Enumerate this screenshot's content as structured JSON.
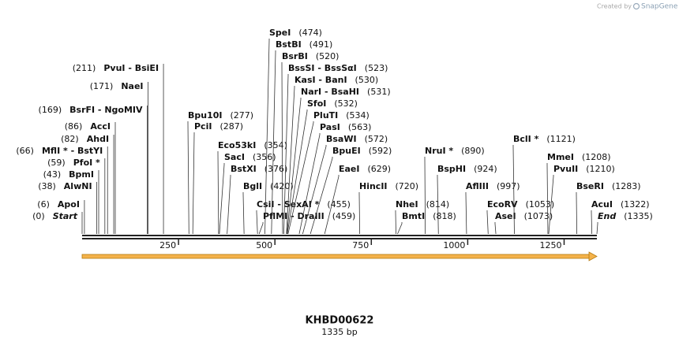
{
  "logo": {
    "prefix": "Created by",
    "brand": "SnapGene"
  },
  "title": "KHBD00622",
  "subtitle": "1335 bp",
  "ruler": {
    "length": 1335,
    "ticks": [
      250,
      500,
      750,
      1000,
      1250
    ]
  },
  "sites": [
    {
      "name": "PvuI - BsiEI",
      "position": {
        "value": 211,
        "label": "(211)"
      }
    },
    {
      "name": "NaeI",
      "position": {
        "value": 171,
        "label": "(171)"
      }
    },
    {
      "name": "BsrFI - NgoMIV",
      "position": {
        "value": 169,
        "label": "(169)"
      }
    },
    {
      "name": "AccI",
      "position": {
        "value": 86,
        "label": "(86)"
      }
    },
    {
      "name": "AhdI",
      "position": {
        "value": 82,
        "label": "(82)"
      }
    },
    {
      "name": "MflI * - BstYI",
      "position": {
        "value": 66,
        "label": "(66)"
      }
    },
    {
      "name": "PfoI *",
      "position": {
        "value": 59,
        "label": "(59)"
      }
    },
    {
      "name": "BpmI",
      "position": {
        "value": 43,
        "label": "(43)"
      }
    },
    {
      "name": "AlwNI",
      "position": {
        "value": 38,
        "label": "(38)"
      }
    },
    {
      "name": "ApoI",
      "position": {
        "value": 6,
        "label": "(6)"
      }
    },
    {
      "name": "Start",
      "position": {
        "value": 0,
        "label": "(0)"
      }
    },
    {
      "name": "Bpu10I",
      "position": {
        "value": 277,
        "label": "(277)"
      }
    },
    {
      "name": "PciI",
      "position": {
        "value": 287,
        "label": "(287)"
      }
    },
    {
      "name": "Eco53kI",
      "position": {
        "value": 354,
        "label": "(354)"
      }
    },
    {
      "name": "SacI",
      "position": {
        "value": 356,
        "label": "(356)"
      }
    },
    {
      "name": "BstXI",
      "position": {
        "value": 376,
        "label": "(376)"
      }
    },
    {
      "name": "BglI",
      "position": {
        "value": 420,
        "label": "(420)"
      }
    },
    {
      "name": "CsiI - SexAI *",
      "position": {
        "value": 455,
        "label": "(455)"
      }
    },
    {
      "name": "PflMI - DraIII",
      "position": {
        "value": 459,
        "label": "(459)"
      }
    },
    {
      "name": "SpeI",
      "position": {
        "value": 474,
        "label": "(474)"
      }
    },
    {
      "name": "BstBI",
      "position": {
        "value": 491,
        "label": "(491)"
      }
    },
    {
      "name": "BsrBI",
      "position": {
        "value": 520,
        "label": "(520)"
      }
    },
    {
      "name": "BssSI - BssSαI",
      "position": {
        "value": 523,
        "label": "(523)"
      }
    },
    {
      "name": "KasI - BanI",
      "position": {
        "value": 530,
        "label": "(530)"
      }
    },
    {
      "name": "NarI - BsaHI",
      "position": {
        "value": 531,
        "label": "(531)"
      }
    },
    {
      "name": "SfoI",
      "position": {
        "value": 532,
        "label": "(532)"
      }
    },
    {
      "name": "PluTI",
      "position": {
        "value": 534,
        "label": "(534)"
      }
    },
    {
      "name": "PasI",
      "position": {
        "value": 563,
        "label": "(563)"
      }
    },
    {
      "name": "BsaWI",
      "position": {
        "value": 572,
        "label": "(572)"
      }
    },
    {
      "name": "BpuEI",
      "position": {
        "value": 592,
        "label": "(592)"
      }
    },
    {
      "name": "EaeI",
      "position": {
        "value": 629,
        "label": "(629)"
      }
    },
    {
      "name": "HincII",
      "position": {
        "value": 720,
        "label": "(720)"
      }
    },
    {
      "name": "NheI",
      "position": {
        "value": 814,
        "label": "(814)"
      }
    },
    {
      "name": "BmtI",
      "position": {
        "value": 818,
        "label": "(818)"
      }
    },
    {
      "name": "NruI *",
      "position": {
        "value": 890,
        "label": "(890)"
      }
    },
    {
      "name": "BspHI",
      "position": {
        "value": 924,
        "label": "(924)"
      }
    },
    {
      "name": "AflIII",
      "position": {
        "value": 997,
        "label": "(997)"
      }
    },
    {
      "name": "EcoRV",
      "position": {
        "value": 1053,
        "label": "(1053)"
      }
    },
    {
      "name": "AseI",
      "position": {
        "value": 1073,
        "label": "(1073)"
      }
    },
    {
      "name": "BclI *",
      "position": {
        "value": 1121,
        "label": "(1121)"
      }
    },
    {
      "name": "MmeI",
      "position": {
        "value": 1208,
        "label": "(1208)"
      }
    },
    {
      "name": "PvuII",
      "position": {
        "value": 1210,
        "label": "(1210)"
      }
    },
    {
      "name": "BseRI",
      "position": {
        "value": 1283,
        "label": "(1283)"
      }
    },
    {
      "name": "AcuI",
      "position": {
        "value": 1322,
        "label": "(1322)"
      }
    },
    {
      "name": "End",
      "position": {
        "value": 1335,
        "label": "(1335)"
      }
    }
  ]
}
